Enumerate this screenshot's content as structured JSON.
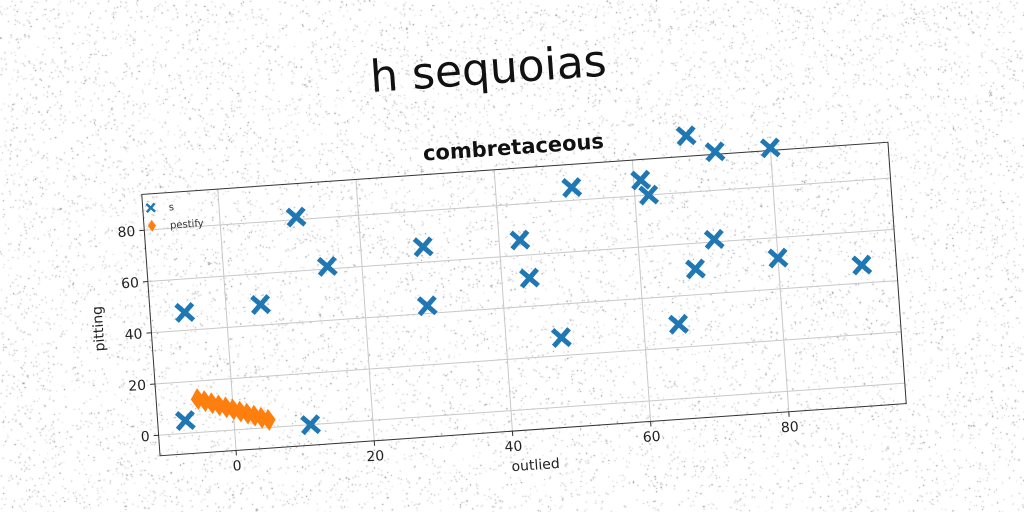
{
  "suptitle": "h sequoias",
  "chart_data": {
    "type": "scatter",
    "title": "combretaceous",
    "xlabel": "outlied",
    "ylabel": "pitting",
    "xlim": [
      -11,
      97
    ],
    "ylim": [
      -8,
      94
    ],
    "xticks": [
      0,
      20,
      40,
      60,
      80
    ],
    "yticks": [
      0,
      20,
      40,
      60,
      80
    ],
    "grid": true,
    "legend": "top-left",
    "series": [
      {
        "name": "s",
        "marker": "x",
        "color": "#1f77b4",
        "points": [
          [
            -6,
            47
          ],
          [
            -7,
            5
          ],
          [
            5,
            48
          ],
          [
            11,
            81
          ],
          [
            15,
            61
          ],
          [
            11,
            0
          ],
          [
            29,
            66
          ],
          [
            29,
            43
          ],
          [
            43,
            66
          ],
          [
            44,
            51
          ],
          [
            48,
            27
          ],
          [
            51,
            85
          ],
          [
            61,
            86
          ],
          [
            62,
            80
          ],
          [
            68,
            102
          ],
          [
            72,
            95
          ],
          [
            71,
            61
          ],
          [
            68,
            50
          ],
          [
            65,
            29
          ],
          [
            80,
            95
          ],
          [
            80,
            52
          ],
          [
            92,
            47
          ]
        ]
      },
      {
        "name": "pestify",
        "marker": "thin_diamond",
        "color": "#ff7f0e",
        "points": [
          [
            -5,
            13
          ],
          [
            -4,
            12
          ],
          [
            -3,
            11
          ],
          [
            -2,
            10
          ],
          [
            -1,
            9
          ],
          [
            0,
            8
          ],
          [
            1,
            7
          ],
          [
            2,
            6
          ],
          [
            3,
            5
          ],
          [
            4,
            4
          ],
          [
            5,
            3
          ]
        ]
      }
    ]
  }
}
